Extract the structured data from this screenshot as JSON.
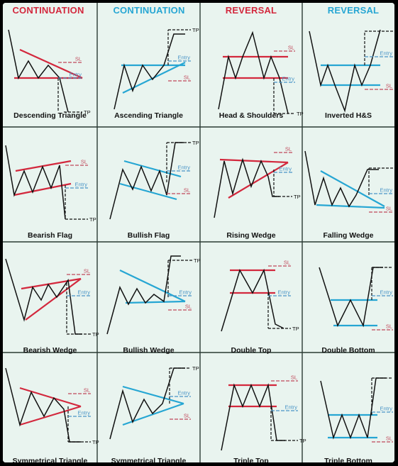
{
  "headers": [
    {
      "label": "CONTINUATION",
      "color": "#d3283d"
    },
    {
      "label": "CONTINUATION",
      "color": "#26a6d3"
    },
    {
      "label": "REVERSAL",
      "color": "#d3283d"
    },
    {
      "label": "REVERSAL",
      "color": "#26a6d3"
    }
  ],
  "level_labels": {
    "stop_loss": "SL",
    "entry": "Entry",
    "take_profit": "TP"
  },
  "colors": {
    "bearish": "#d3283d",
    "bullish": "#26a6d3",
    "price": "#111111",
    "entry_line": "#4a95c6",
    "sl_line": "#c0485a",
    "grid": "#2b3b34"
  },
  "patterns": [
    {
      "name": "Descending Triangle",
      "bias": "bearish"
    },
    {
      "name": "Ascending Triangle",
      "bias": "bullish"
    },
    {
      "name": "Head & Shoulders",
      "bias": "bearish"
    },
    {
      "name": "Inverted H&S",
      "bias": "bullish"
    },
    {
      "name": "Bearish Flag",
      "bias": "bearish"
    },
    {
      "name": "Bullish Flag",
      "bias": "bullish"
    },
    {
      "name": "Rising Wedge",
      "bias": "bearish"
    },
    {
      "name": "Falling Wedge",
      "bias": "bullish"
    },
    {
      "name": "Bearish Wedge",
      "bias": "bearish"
    },
    {
      "name": "Bullish Wedge",
      "bias": "bullish"
    },
    {
      "name": "Double Top",
      "bias": "bearish"
    },
    {
      "name": "Double Bottom",
      "bias": "bullish"
    },
    {
      "name": "Symmetrical Triangle",
      "bias": "bearish"
    },
    {
      "name": "Symmetrical Triangle",
      "bias": "bullish"
    },
    {
      "name": "Triple Top",
      "bias": "bearish"
    },
    {
      "name": "Triple Bottom",
      "bias": "bullish"
    }
  ]
}
